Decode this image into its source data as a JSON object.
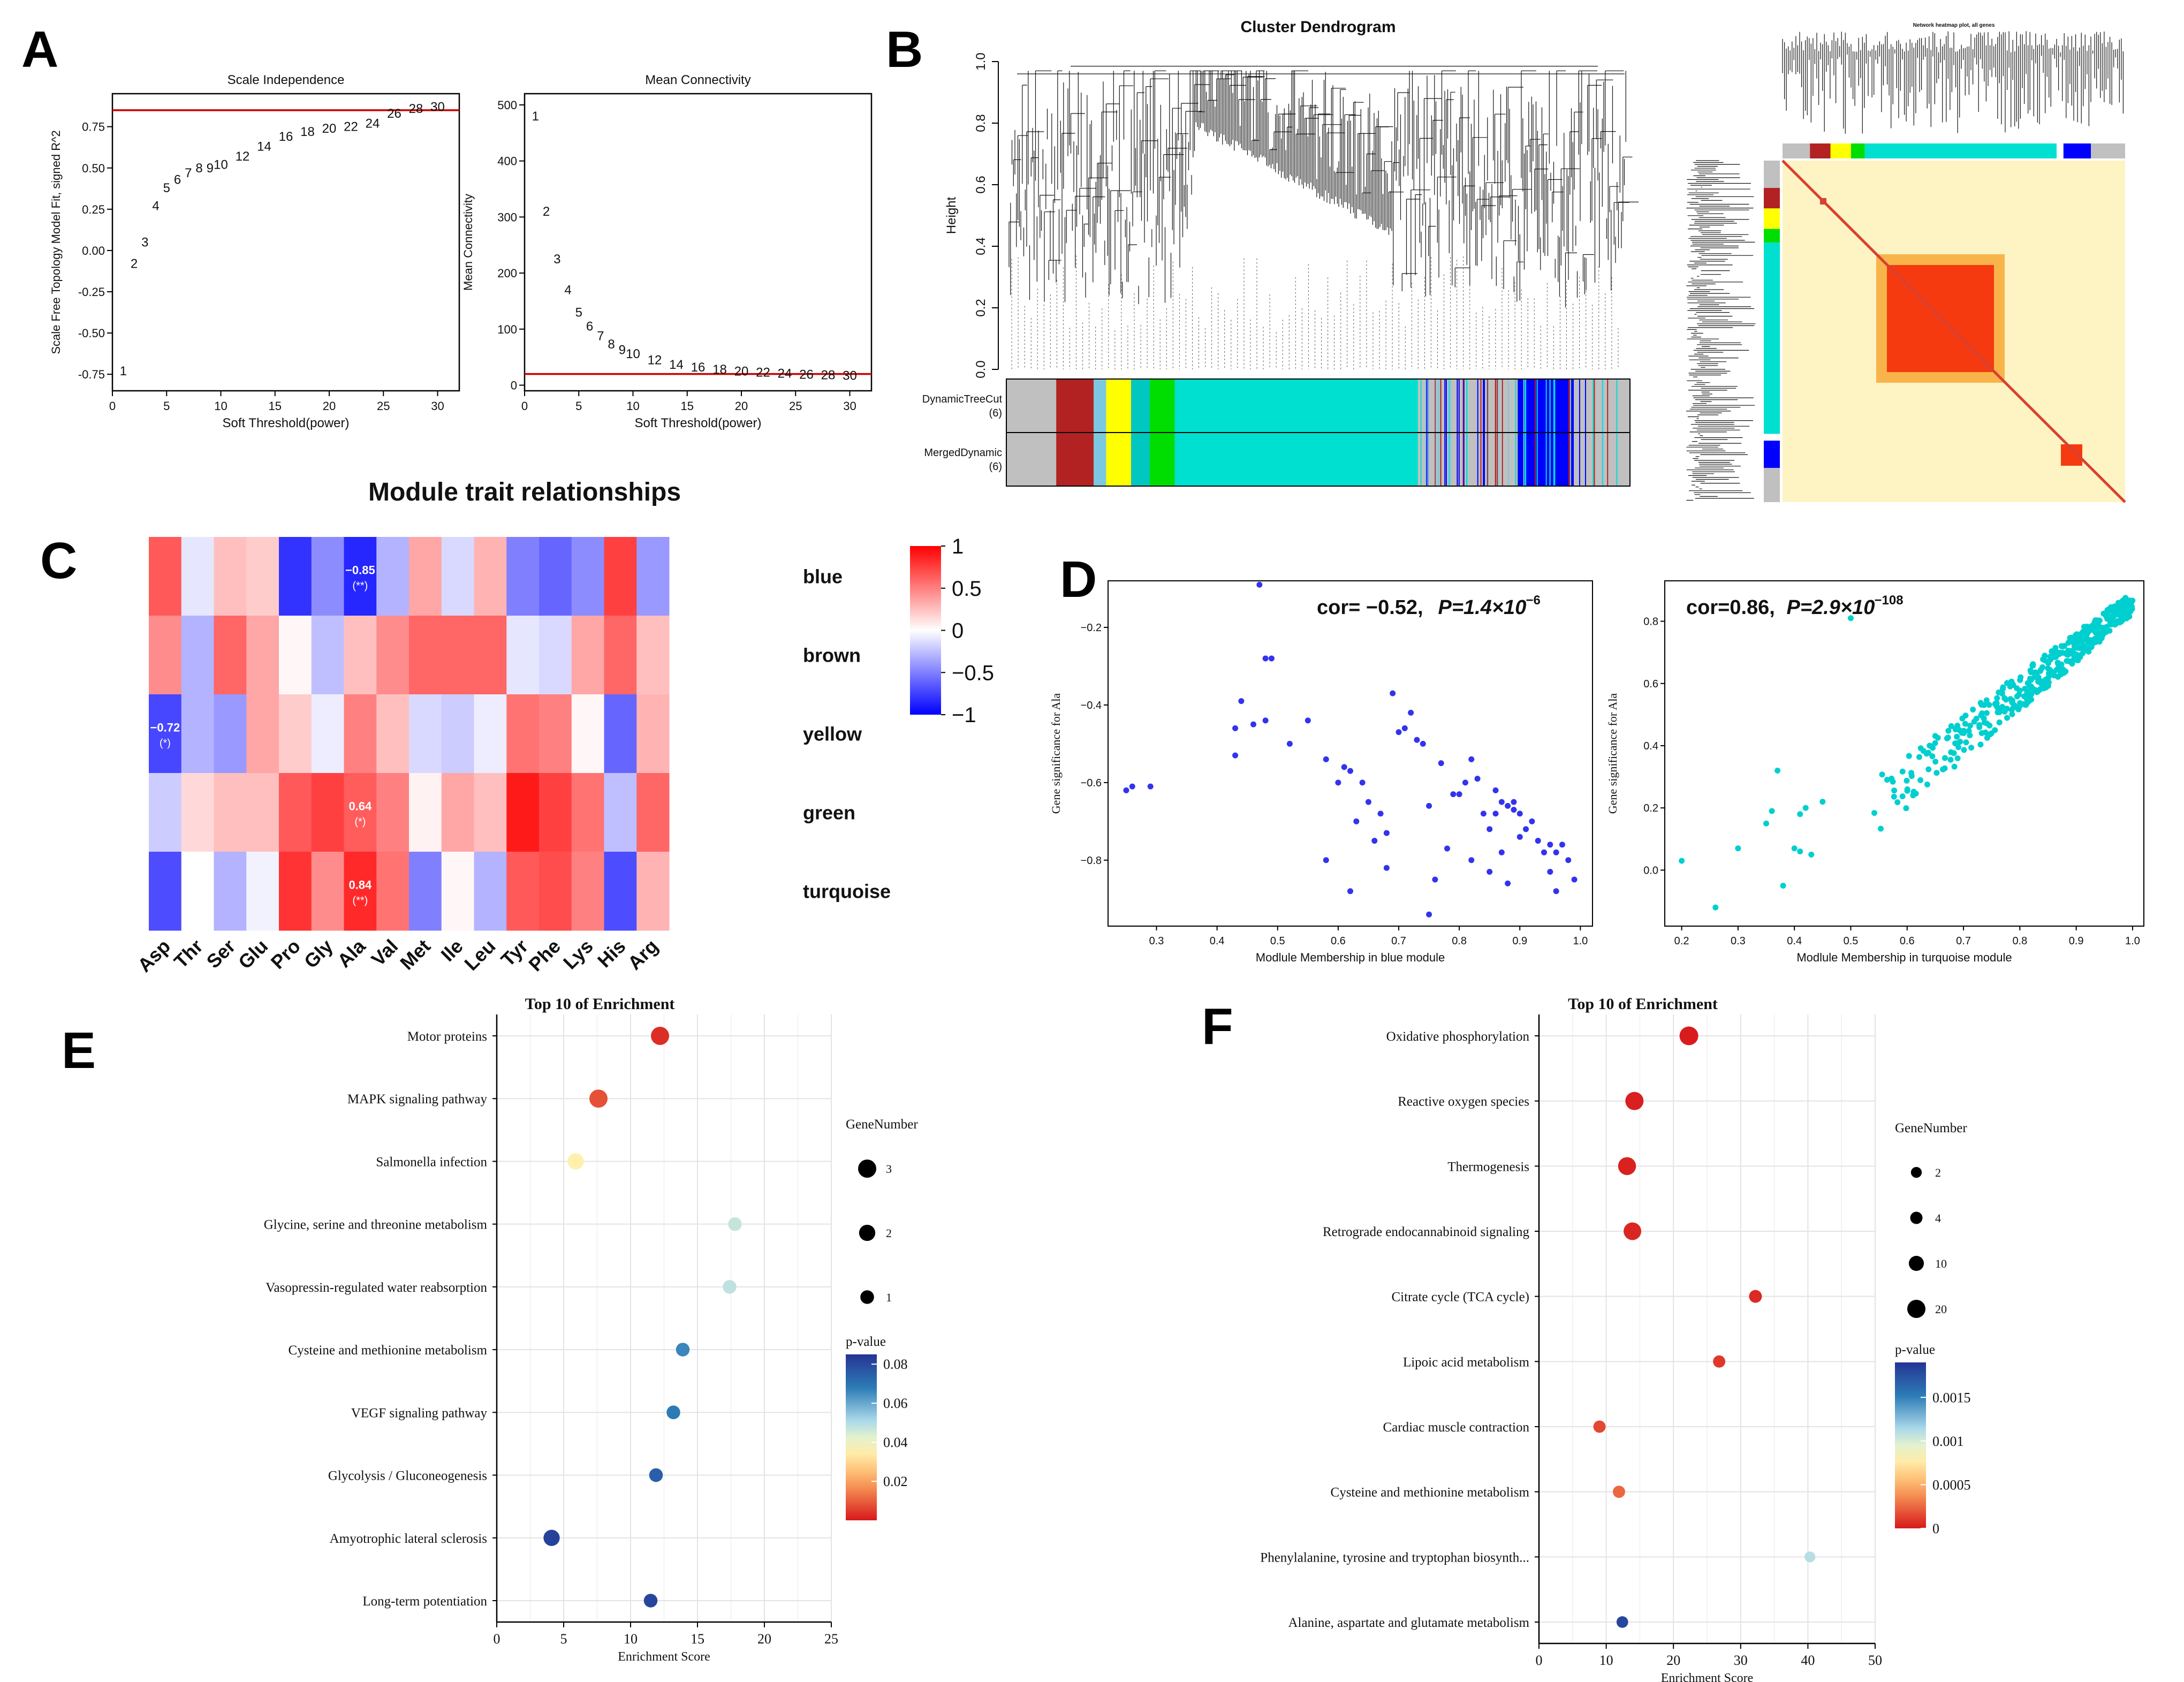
{
  "panel_letters": [
    "A",
    "B",
    "C",
    "D",
    "E",
    "F"
  ],
  "chart_data": [
    {
      "id": "A1",
      "type": "scatter",
      "title": "Scale Independence",
      "xlabel": "Soft Threshold(power)",
      "ylabel": "Scale Free Topology Model Fit, signed R^2",
      "xlim": [
        0,
        32
      ],
      "ylim": [
        -0.85,
        0.95
      ],
      "xticks": [
        0,
        5,
        10,
        15,
        20,
        25,
        30
      ],
      "yticks": [
        -0.75,
        -0.5,
        -0.25,
        0.0,
        0.25,
        0.5,
        0.75
      ],
      "ytick_labels": [
        "-0.75",
        "-0.50",
        "-0.25",
        "0.00",
        "0.25",
        "0.50",
        "0.75"
      ],
      "cutoff": 0.85,
      "cutoff_color": "#cc0000",
      "points": [
        {
          "x": 1,
          "y": -0.73,
          "label": "1"
        },
        {
          "x": 2,
          "y": -0.08,
          "label": "2"
        },
        {
          "x": 3,
          "y": 0.05,
          "label": "3"
        },
        {
          "x": 4,
          "y": 0.27,
          "label": "4"
        },
        {
          "x": 5,
          "y": 0.38,
          "label": "5"
        },
        {
          "x": 6,
          "y": 0.43,
          "label": "6"
        },
        {
          "x": 7,
          "y": 0.47,
          "label": "7"
        },
        {
          "x": 8,
          "y": 0.5,
          "label": "8"
        },
        {
          "x": 9,
          "y": 0.5,
          "label": "9"
        },
        {
          "x": 10,
          "y": 0.52,
          "label": "10"
        },
        {
          "x": 12,
          "y": 0.57,
          "label": "12"
        },
        {
          "x": 14,
          "y": 0.63,
          "label": "14"
        },
        {
          "x": 16,
          "y": 0.69,
          "label": "16"
        },
        {
          "x": 18,
          "y": 0.72,
          "label": "18"
        },
        {
          "x": 20,
          "y": 0.74,
          "label": "20"
        },
        {
          "x": 22,
          "y": 0.75,
          "label": "22"
        },
        {
          "x": 24,
          "y": 0.77,
          "label": "24"
        },
        {
          "x": 26,
          "y": 0.83,
          "label": "26"
        },
        {
          "x": 28,
          "y": 0.86,
          "label": "28"
        },
        {
          "x": 30,
          "y": 0.87,
          "label": "30"
        }
      ]
    },
    {
      "id": "A2",
      "type": "scatter",
      "title": "Mean Connectivity",
      "xlabel": "Soft Threshold(power)",
      "ylabel": "Mean Connectivity",
      "xlim": [
        0,
        32
      ],
      "ylim": [
        -10,
        520
      ],
      "xticks": [
        0,
        5,
        10,
        15,
        20,
        25,
        30
      ],
      "yticks": [
        0,
        100,
        200,
        300,
        400,
        500
      ],
      "ytick_labels": [
        "0",
        "100",
        "200",
        "300",
        "400",
        "500"
      ],
      "cutoff": 20,
      "cutoff_color": "#cc0000",
      "points": [
        {
          "x": 1,
          "y": 480,
          "label": "1"
        },
        {
          "x": 2,
          "y": 310,
          "label": "2"
        },
        {
          "x": 3,
          "y": 225,
          "label": "3"
        },
        {
          "x": 4,
          "y": 170,
          "label": "4"
        },
        {
          "x": 5,
          "y": 130,
          "label": "5"
        },
        {
          "x": 6,
          "y": 105,
          "label": "6"
        },
        {
          "x": 7,
          "y": 88,
          "label": "7"
        },
        {
          "x": 8,
          "y": 73,
          "label": "8"
        },
        {
          "x": 9,
          "y": 63,
          "label": "9"
        },
        {
          "x": 10,
          "y": 56,
          "label": "10"
        },
        {
          "x": 12,
          "y": 45,
          "label": "12"
        },
        {
          "x": 14,
          "y": 37,
          "label": "14"
        },
        {
          "x": 16,
          "y": 32,
          "label": "16"
        },
        {
          "x": 18,
          "y": 28,
          "label": "18"
        },
        {
          "x": 20,
          "y": 25,
          "label": "20"
        },
        {
          "x": 22,
          "y": 23,
          "label": "22"
        },
        {
          "x": 24,
          "y": 21,
          "label": "24"
        },
        {
          "x": 26,
          "y": 19,
          "label": "26"
        },
        {
          "x": 28,
          "y": 18,
          "label": "28"
        },
        {
          "x": 30,
          "y": 17,
          "label": "30"
        }
      ]
    },
    {
      "id": "B1",
      "type": "dendrogram",
      "title": "Cluster Dendrogram",
      "ylabel": "Height",
      "ylim": [
        0,
        1.0
      ],
      "yticks": [
        0.0,
        0.2,
        0.4,
        0.6,
        0.8,
        1.0
      ],
      "ytick_labels": [
        "0.0",
        "0.2",
        "0.4",
        "0.6",
        "0.8",
        "1.0"
      ],
      "row_labels": [
        "DynamicTreeCut",
        "(6)",
        "MergedDynamic",
        "(6)"
      ],
      "module_bars": [
        {
          "color": "#c0c0c0",
          "from": 0,
          "to": 0.08
        },
        {
          "color": "#b22222",
          "from": 0.08,
          "to": 0.14
        },
        {
          "color": "#7cc8e0",
          "from": 0.14,
          "to": 0.16
        },
        {
          "color": "#ffff00",
          "from": 0.16,
          "to": 0.2
        },
        {
          "color": "#00c8c0",
          "from": 0.2,
          "to": 0.23
        },
        {
          "color": "#00dd00",
          "from": 0.23,
          "to": 0.27
        },
        {
          "color": "#00e0d0",
          "from": 0.27,
          "to": 0.66
        },
        {
          "color": "#c0c0c0",
          "from": 0.66,
          "to": 0.8
        },
        {
          "color": "#0000ff",
          "from": 0.82,
          "to": 0.91
        },
        {
          "color": "#c0c0c0",
          "from": 0.91,
          "to": 1.0
        }
      ]
    },
    {
      "id": "B2",
      "type": "heatmap",
      "title": "Network heatmap plot, all genes",
      "background": "#fdf3c3",
      "diagonal_color": "#d84030",
      "block_color": "#f53a10"
    },
    {
      "id": "C",
      "type": "heatmap",
      "title": "Module trait relationships",
      "columns": [
        "Asp",
        "Thr",
        "Ser",
        "Glu",
        "Pro",
        "Gly",
        "Ala",
        "Val",
        "Met",
        "Ile",
        "Leu",
        "Tyr",
        "Phe",
        "Lys",
        "His",
        "Arg"
      ],
      "rows": [
        "blue",
        "brown",
        "yellow",
        "green",
        "turquoise"
      ],
      "values": [
        [
          0.65,
          -0.1,
          0.25,
          0.2,
          -0.8,
          -0.45,
          -0.85,
          -0.3,
          0.35,
          -0.15,
          0.3,
          -0.5,
          -0.6,
          -0.45,
          0.75,
          -0.4
        ],
        [
          0.45,
          -0.3,
          0.6,
          0.35,
          0.03,
          -0.25,
          0.25,
          0.45,
          0.6,
          0.6,
          0.6,
          -0.1,
          -0.15,
          0.35,
          0.6,
          0.25
        ],
        [
          -0.72,
          -0.3,
          -0.4,
          0.35,
          0.2,
          -0.07,
          0.5,
          0.25,
          -0.15,
          -0.2,
          -0.07,
          0.55,
          0.5,
          0.03,
          -0.6,
          0.3
        ],
        [
          -0.2,
          0.15,
          0.25,
          0.25,
          0.65,
          0.75,
          0.64,
          0.5,
          0.05,
          0.35,
          0.25,
          0.9,
          0.75,
          0.55,
          -0.25,
          0.6
        ],
        [
          -0.7,
          0.0,
          -0.3,
          -0.05,
          0.8,
          0.45,
          0.84,
          0.55,
          -0.5,
          0.03,
          -0.3,
          0.65,
          0.7,
          0.5,
          -0.7,
          0.3
        ]
      ],
      "cell_labels": [
        {
          "row": 0,
          "col": 6,
          "text": "−0.85",
          "sig": "(**)"
        },
        {
          "row": 2,
          "col": 0,
          "text": "−0.72",
          "sig": "(*)"
        },
        {
          "row": 3,
          "col": 6,
          "text": "0.64",
          "sig": "(*)"
        },
        {
          "row": 4,
          "col": 6,
          "text": "0.84",
          "sig": "(**)"
        }
      ],
      "colorbar": {
        "ticks": [
          1,
          0.5,
          0,
          -0.5,
          -1
        ],
        "tick_labels": [
          "1",
          "0.5",
          "0",
          "−0.5",
          "−1"
        ]
      }
    },
    {
      "id": "D1",
      "type": "scatter",
      "annotation": "cor= −0.52,",
      "p_text": "P=1.4×10",
      "p_exp": "−6",
      "xlabel": "Modlule Membership in blue module",
      "ylabel": "Gene significance for Ala",
      "xlim": [
        0.22,
        1.02
      ],
      "ylim": [
        -0.97,
        -0.08
      ],
      "xticks": [
        0.3,
        0.4,
        0.5,
        0.6,
        0.7,
        0.8,
        0.9,
        1.0
      ],
      "yticks": [
        -0.8,
        -0.6,
        -0.4,
        -0.2
      ],
      "ytick_labels": [
        "−0.8",
        "−0.6",
        "−0.4",
        "−0.2"
      ],
      "color": "#3333ee",
      "points": [
        [
          0.25,
          -0.62
        ],
        [
          0.26,
          -0.61
        ],
        [
          0.29,
          -0.61
        ],
        [
          0.43,
          -0.46
        ],
        [
          0.43,
          -0.53
        ],
        [
          0.44,
          -0.39
        ],
        [
          0.46,
          -0.45
        ],
        [
          0.47,
          -0.09
        ],
        [
          0.48,
          -0.28
        ],
        [
          0.49,
          -0.28
        ],
        [
          0.48,
          -0.44
        ],
        [
          0.52,
          -0.5
        ],
        [
          0.55,
          -0.44
        ],
        [
          0.58,
          -0.54
        ],
        [
          0.58,
          -0.8
        ],
        [
          0.6,
          -0.6
        ],
        [
          0.61,
          -0.56
        ],
        [
          0.62,
          -0.57
        ],
        [
          0.62,
          -0.88
        ],
        [
          0.63,
          -0.7
        ],
        [
          0.64,
          -0.6
        ],
        [
          0.65,
          -0.65
        ],
        [
          0.66,
          -0.75
        ],
        [
          0.67,
          -0.68
        ],
        [
          0.68,
          -0.82
        ],
        [
          0.68,
          -0.73
        ],
        [
          0.69,
          -0.37
        ],
        [
          0.7,
          -0.47
        ],
        [
          0.71,
          -0.46
        ],
        [
          0.72,
          -0.42
        ],
        [
          0.73,
          -0.49
        ],
        [
          0.74,
          -0.5
        ],
        [
          0.75,
          -0.66
        ],
        [
          0.75,
          -0.94
        ],
        [
          0.76,
          -0.85
        ],
        [
          0.77,
          -0.55
        ],
        [
          0.78,
          -0.77
        ],
        [
          0.79,
          -0.63
        ],
        [
          0.8,
          -0.63
        ],
        [
          0.81,
          -0.6
        ],
        [
          0.82,
          -0.54
        ],
        [
          0.82,
          -0.8
        ],
        [
          0.83,
          -0.59
        ],
        [
          0.84,
          -0.68
        ],
        [
          0.85,
          -0.72
        ],
        [
          0.85,
          -0.83
        ],
        [
          0.86,
          -0.62
        ],
        [
          0.86,
          -0.68
        ],
        [
          0.87,
          -0.65
        ],
        [
          0.87,
          -0.78
        ],
        [
          0.88,
          -0.66
        ],
        [
          0.88,
          -0.86
        ],
        [
          0.89,
          -0.67
        ],
        [
          0.89,
          -0.65
        ],
        [
          0.9,
          -0.68
        ],
        [
          0.9,
          -0.74
        ],
        [
          0.91,
          -0.72
        ],
        [
          0.92,
          -0.7
        ],
        [
          0.93,
          -0.75
        ],
        [
          0.94,
          -0.78
        ],
        [
          0.95,
          -0.76
        ],
        [
          0.95,
          -0.83
        ],
        [
          0.96,
          -0.88
        ],
        [
          0.96,
          -0.78
        ],
        [
          0.97,
          -0.76
        ],
        [
          0.98,
          -0.8
        ],
        [
          0.99,
          -0.85
        ]
      ]
    },
    {
      "id": "D2",
      "type": "scatter",
      "annotation": "cor=0.86,",
      "p_text": "P=2.9×10",
      "p_exp": "−108",
      "xlabel": "Modlule Membership in turquoise module",
      "ylabel": "Gene significance for Ala",
      "xlim": [
        0.17,
        1.02
      ],
      "ylim": [
        -0.18,
        0.93
      ],
      "xticks": [
        0.2,
        0.3,
        0.4,
        0.5,
        0.6,
        0.7,
        0.8,
        0.9,
        1.0
      ],
      "yticks": [
        0.0,
        0.2,
        0.4,
        0.6,
        0.8
      ],
      "ytick_labels": [
        "0.0",
        "0.2",
        "0.4",
        "0.6",
        "0.8"
      ],
      "color": "#00cfcf",
      "trend": {
        "a": -0.58,
        "b": 1.44,
        "spread": 0.12,
        "n": 420,
        "xmin": 0.2,
        "xmax": 1.0,
        "seed": 7
      },
      "points": [
        [
          0.2,
          0.03
        ],
        [
          0.26,
          -0.12
        ],
        [
          0.3,
          0.07
        ],
        [
          0.35,
          0.15
        ],
        [
          0.36,
          0.19
        ],
        [
          0.37,
          0.32
        ],
        [
          0.38,
          -0.05
        ],
        [
          0.4,
          0.07
        ],
        [
          0.41,
          0.06
        ],
        [
          0.41,
          0.18
        ],
        [
          0.42,
          0.2
        ],
        [
          0.43,
          0.05
        ],
        [
          0.45,
          0.22
        ],
        [
          0.5,
          0.81
        ]
      ]
    },
    {
      "id": "E",
      "type": "scatter",
      "subtype": "bubble",
      "title": "Top 10 of  Enrichment",
      "xlabel": "Enrichment Score",
      "xlim": [
        0,
        25
      ],
      "xticks": [
        0,
        5,
        10,
        15,
        20,
        25
      ],
      "categories": [
        "Motor proteins",
        "MAPK signaling pathway",
        "Salmonella infection",
        "Glycine, serine and threonine metabolism",
        "Vasopressin-regulated water reabsorption",
        "Cysteine and methionine metabolism",
        "VEGF signaling pathway",
        "Glycolysis / Gluconeogenesis",
        "Amyotrophic lateral sclerosis",
        "Long-term potentiation"
      ],
      "x": [
        12.2,
        7.6,
        5.9,
        17.8,
        17.4,
        13.9,
        13.2,
        11.9,
        4.1,
        11.5
      ],
      "gene_number": [
        3,
        3,
        2,
        1,
        1,
        1,
        1,
        1,
        2,
        1
      ],
      "p_value": [
        0.003,
        0.008,
        0.035,
        0.047,
        0.048,
        0.066,
        0.068,
        0.075,
        0.082,
        0.081
      ],
      "size_legend": {
        "title": "GeneNumber",
        "values": [
          3,
          2,
          1
        ],
        "labels": [
          "3",
          "2",
          "1"
        ]
      },
      "color_legend": {
        "title": "p-value",
        "range": [
          0.0,
          0.085
        ],
        "ticks": [
          0.08,
          0.06,
          0.04,
          0.02
        ],
        "labels": [
          "0.08",
          "0.06",
          "0.04",
          "0.02"
        ]
      }
    },
    {
      "id": "F",
      "type": "scatter",
      "subtype": "bubble",
      "title": "Top 10 of  Enrichment",
      "xlabel": "Enrichment Score",
      "xlim": [
        0,
        50
      ],
      "xticks": [
        0,
        10,
        20,
        30,
        40,
        50
      ],
      "categories": [
        "Oxidative phosphorylation",
        "Reactive oxygen species",
        "Thermogenesis",
        "Retrograde endocannabinoid signaling",
        "Citrate cycle (TCA cycle)",
        "Lipoic acid metabolism",
        "Cardiac muscle contraction",
        "Cysteine and methionine metabolism",
        "Phenylalanine, tyrosine and tryptophan biosynth...",
        "Alanine, aspartate and glutamate metabolism"
      ],
      "x": [
        22.3,
        14.2,
        13.1,
        13.9,
        32.2,
        26.8,
        9.0,
        11.9,
        40.3,
        12.4
      ],
      "gene_number": [
        22,
        20,
        19,
        18,
        5,
        4,
        4,
        4,
        2,
        3
      ],
      "p_value": [
        1e-05,
        2e-05,
        3e-05,
        4e-05,
        5e-05,
        0.0001,
        0.00015,
        0.00025,
        0.0011,
        0.0018
      ],
      "size_legend": {
        "title": "GeneNumber",
        "values": [
          2,
          4,
          10,
          20
        ],
        "labels": [
          "2",
          "4",
          "10",
          "20"
        ]
      },
      "color_legend": {
        "title": "p-value",
        "range": [
          0.0,
          0.0019
        ],
        "ticks": [
          0.0015,
          0.001,
          0.0005,
          0
        ],
        "labels": [
          "0.0015",
          "0.001",
          "0.0005",
          "0"
        ]
      }
    }
  ]
}
